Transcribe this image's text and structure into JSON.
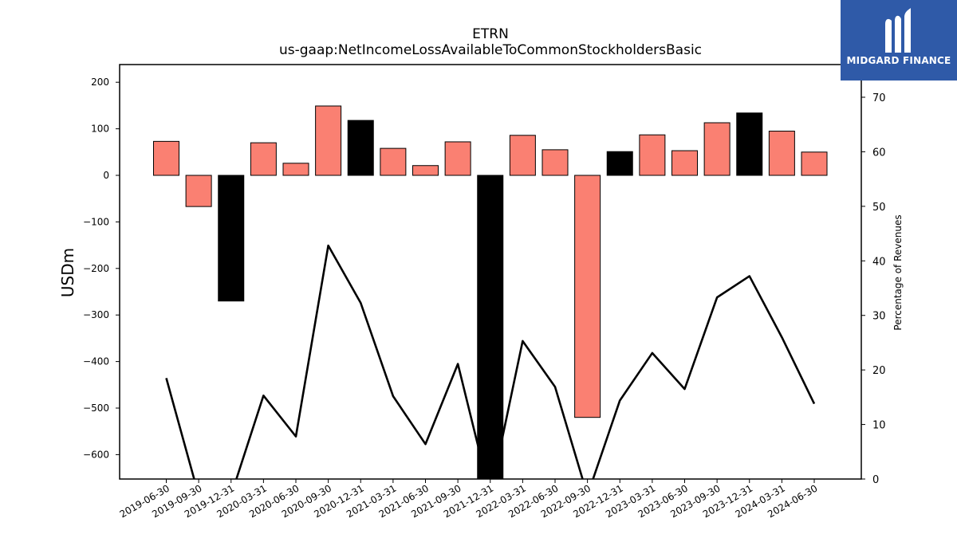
{
  "logo": {
    "text": "MIDGARD FINANCE"
  },
  "chart_data": {
    "type": "bar",
    "title": "ETRN",
    "subtitle": "us-gaap:NetIncomeLossAvailableToCommonStockholdersBasic",
    "ylabel": "USDm",
    "y2label": "Percentage of Revenues",
    "categories": [
      "2019-06-30",
      "2019-09-30",
      "2019-12-31",
      "2020-03-31",
      "2020-06-30",
      "2020-09-30",
      "2020-12-31",
      "2021-03-31",
      "2021-06-30",
      "2021-09-30",
      "2021-12-31",
      "2022-03-31",
      "2022-06-30",
      "2022-09-30",
      "2022-12-31",
      "2023-03-31",
      "2023-06-30",
      "2023-09-30",
      "2023-12-31",
      "2024-03-31",
      "2024-06-30"
    ],
    "series": [
      {
        "values": [
          73,
          -67,
          -270,
          70,
          26,
          149,
          118,
          58,
          21,
          72,
          -660,
          86,
          55,
          -520,
          51,
          87,
          53,
          113,
          134,
          95,
          50
        ],
        "colors": [
          "#fa8072",
          "#fa8072",
          "#000000",
          "#fa8072",
          "#fa8072",
          "#fa8072",
          "#000000",
          "#fa8072",
          "#fa8072",
          "#fa8072",
          "#000000",
          "#fa8072",
          "#fa8072",
          "#fa8072",
          "#000000",
          "#fa8072",
          "#fa8072",
          "#fa8072",
          "#000000",
          "#fa8072",
          "#fa8072"
        ]
      },
      {
        "type": "line",
        "axis": "right",
        "values": [
          18.5,
          -3,
          -3,
          15.3,
          7.8,
          42.8,
          32.3,
          15.2,
          6.4,
          21.1,
          -3,
          25.3,
          16.9,
          -3,
          14.4,
          23.1,
          16.5,
          33.3,
          37.2,
          26.0,
          13.8
        ]
      }
    ],
    "ylim": [
      -655,
      240
    ],
    "y2lim": [
      0,
      70
    ],
    "yticks": [
      200,
      100,
      0,
      -100,
      -200,
      -300,
      -400,
      -500,
      -600
    ],
    "y2ticks": [
      0,
      10,
      20,
      30,
      40,
      50,
      60,
      70
    ],
    "grid": false
  }
}
